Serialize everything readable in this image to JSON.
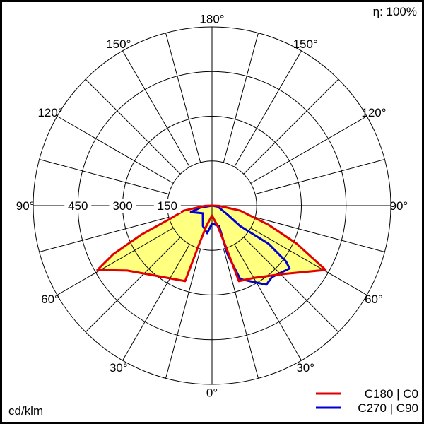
{
  "chart_data": {
    "type": "polar",
    "units_label": "cd/klm",
    "efficiency_label": "η: 100%",
    "radial_ticks": [
      150,
      300,
      450
    ],
    "radial_max": 600,
    "radial_circles": [
      150,
      300,
      450,
      600
    ],
    "angle_step_deg": 15,
    "angle_labels": [
      {
        "angle": 0,
        "text": "0°"
      },
      {
        "angle": -30,
        "text": "30°"
      },
      {
        "angle": 30,
        "text": "30°"
      },
      {
        "angle": -60,
        "text": "60°"
      },
      {
        "angle": 60,
        "text": "60°"
      },
      {
        "angle": -90,
        "text": "90°"
      },
      {
        "angle": 90,
        "text": "90°"
      },
      {
        "angle": -120,
        "text": "120°"
      },
      {
        "angle": 120,
        "text": "120°"
      },
      {
        "angle": -150,
        "text": "150°"
      },
      {
        "angle": 150,
        "text": "150°"
      },
      {
        "angle": 180,
        "text": "180°"
      }
    ],
    "fill_color": "#ffff80",
    "series": [
      {
        "name": "C180 | C0",
        "color": "#e00000",
        "points": [
          [
            -90,
            0
          ],
          [
            -88,
            24
          ],
          [
            -80,
            96
          ],
          [
            -72.4,
            149
          ],
          [
            -67.7,
            256
          ],
          [
            -63.8,
            370
          ],
          [
            -60.7,
            441
          ],
          [
            -52.5,
            358
          ],
          [
            -38.9,
            302
          ],
          [
            -19.6,
            269
          ],
          [
            -18.7,
            148
          ],
          [
            -15.4,
            71
          ],
          [
            0,
            33
          ],
          [
            15.4,
            71
          ],
          [
            18.7,
            148
          ],
          [
            19.6,
            269
          ],
          [
            30.5,
            281
          ],
          [
            45.9,
            330
          ],
          [
            60.5,
            438
          ],
          [
            65.8,
            312
          ],
          [
            71.3,
            200
          ],
          [
            80,
            96
          ],
          [
            88,
            24
          ],
          [
            90,
            0
          ]
        ]
      },
      {
        "name": "C270 | C90",
        "color": "#0000d0",
        "points": [
          [
            -90,
            0
          ],
          [
            -80,
            40
          ],
          [
            -73,
            74
          ],
          [
            -50,
            40
          ],
          [
            -24,
            75
          ],
          [
            -10,
            94
          ],
          [
            0,
            60
          ],
          [
            19,
            73
          ],
          [
            17.7,
            171
          ],
          [
            21,
            264
          ],
          [
            34.5,
            322
          ],
          [
            40,
            313
          ],
          [
            51,
            335
          ],
          [
            53,
            311
          ],
          [
            56,
            229
          ],
          [
            54,
            117
          ],
          [
            60,
            60
          ],
          [
            80,
            20
          ],
          [
            90,
            0
          ]
        ]
      }
    ]
  }
}
